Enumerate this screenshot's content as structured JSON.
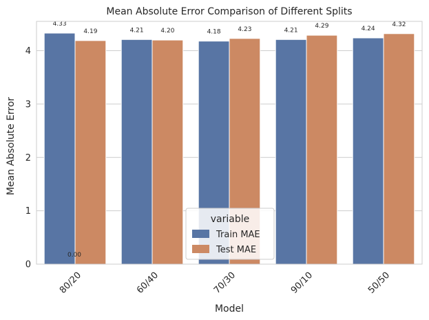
{
  "chart_data": {
    "type": "bar",
    "title": "Mean Absolute Error Comparison of Different Splits",
    "xlabel": "Model",
    "ylabel": "Mean Absolute Error",
    "categories": [
      "80/20",
      "60/40",
      "70/30",
      "90/10",
      "50/50"
    ],
    "series": [
      {
        "name": "Train MAE",
        "values": [
          4.33,
          4.21,
          4.18,
          4.21,
          4.24
        ],
        "color": "#5875a4"
      },
      {
        "name": "Test MAE",
        "values": [
          4.19,
          4.2,
          4.23,
          4.29,
          4.32
        ],
        "color": "#cc8963"
      }
    ],
    "ylim": [
      0,
      4.55
    ],
    "yticks": [
      "0",
      "1",
      "2",
      "3",
      "4"
    ],
    "data_labels": {
      "Train MAE": [
        "4.33",
        "4.21",
        "4.18",
        "4.21",
        "4.24"
      ],
      "Test MAE": [
        "4.19",
        "4.20",
        "4.23",
        "4.29",
        "4.32"
      ]
    },
    "extra_annotation": "0.00",
    "grid": true,
    "legend": {
      "title": "variable",
      "placement": "lower-center"
    }
  },
  "colors": {
    "grid": "#cccccc",
    "text": "#262626",
    "spine": "#cccccc"
  }
}
